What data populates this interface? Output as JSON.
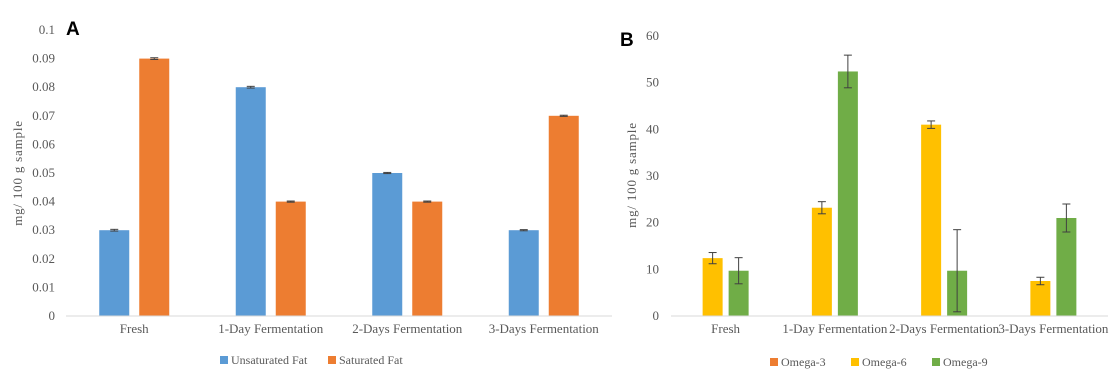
{
  "chart_data": [
    {
      "panel_label": "A",
      "type": "bar",
      "ylabel": "mg/ 100 g sample",
      "ylim": [
        0,
        0.1
      ],
      "yticks": [
        0,
        0.01,
        0.02,
        0.03,
        0.04,
        0.05,
        0.06,
        0.07,
        0.08,
        0.09,
        0.1
      ],
      "ytick_labels": [
        "0",
        "0.01",
        "0.02",
        "0.03",
        "0.04",
        "0.05",
        "0.06",
        "0.07",
        "0.08",
        "0.09",
        "0.1"
      ],
      "categories": [
        "Fresh",
        "1-Day Fermentation",
        "2-Days Fermentation",
        "3-Days Fermentation"
      ],
      "series": [
        {
          "name": "Unsaturated Fat",
          "color": "#5B9BD5",
          "values": [
            0.03,
            0.08,
            0.05,
            0.03
          ],
          "errors": [
            0.0003,
            0.0003,
            0.0002,
            0.0002
          ]
        },
        {
          "name": "Saturated Fat",
          "color": "#ED7D31",
          "values": [
            0.09,
            0.04,
            0.04,
            0.07
          ],
          "errors": [
            0.0003,
            0.0002,
            0.0002,
            0.0002
          ]
        }
      ],
      "legend_position": "bottom",
      "grid": false
    },
    {
      "panel_label": "B",
      "type": "bar",
      "ylabel": "mg/ 100 g sample",
      "ylim": [
        0,
        60
      ],
      "yticks": [
        0,
        10,
        20,
        30,
        40,
        50,
        60
      ],
      "ytick_labels": [
        "0",
        "10",
        "20",
        "30",
        "40",
        "50",
        "60"
      ],
      "categories": [
        "Fresh",
        "1-Day Fermentation",
        "2-Days Fermentation",
        "3-Days Fermentation"
      ],
      "series": [
        {
          "name": "Omega-3",
          "color": "#ED7D31",
          "values": [
            0,
            0,
            0,
            0
          ],
          "errors": [
            0,
            0,
            0,
            0
          ]
        },
        {
          "name": "Omega-6",
          "color": "#FFC000",
          "values": [
            12.4,
            23.2,
            41.0,
            7.5
          ],
          "errors": [
            1.2,
            1.3,
            0.8,
            0.8
          ]
        },
        {
          "name": "Omega-9",
          "color": "#70AD47",
          "values": [
            9.7,
            52.4,
            9.7,
            21.0
          ],
          "errors": [
            2.8,
            3.5,
            8.8,
            3.0
          ]
        }
      ],
      "legend_position": "bottom",
      "grid": false
    }
  ]
}
